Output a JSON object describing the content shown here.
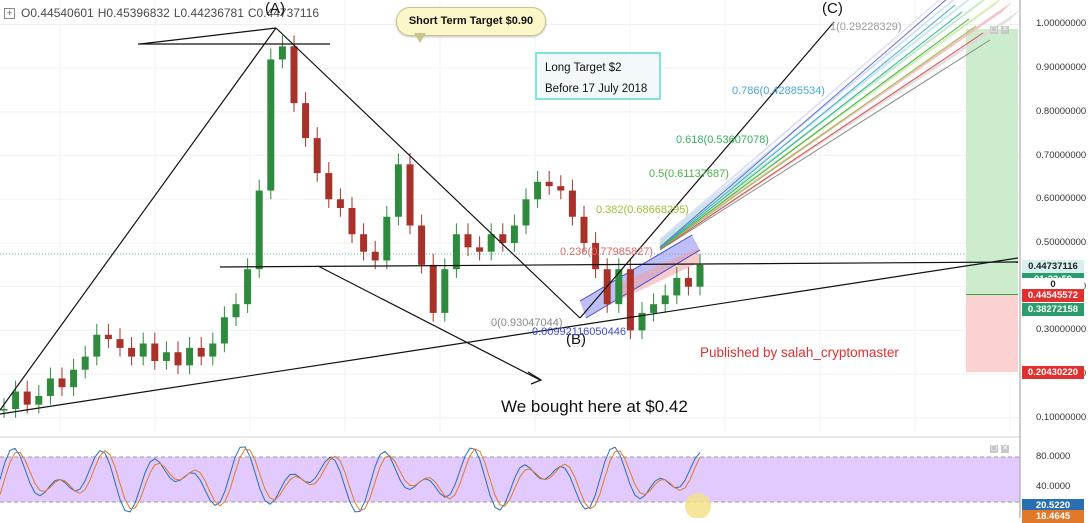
{
  "ohlc": {
    "open": "O0.44540601",
    "high": "H0.45396832",
    "low": "L0.44236781",
    "close": "C0.44737116"
  },
  "callout": {
    "text": "Short Term Target $0.90"
  },
  "target_box": {
    "line1": "Long Target $2",
    "line2": "Before 17 July 2018"
  },
  "labels": {
    "point_a": "(A)",
    "point_b": "(B)",
    "point_c": "(C)",
    "bought": "We bought here at $0.42",
    "published": "Published by salah_cryptomaster"
  },
  "fib_labels": [
    {
      "text": "1(0.29228329)",
      "color": "#9e9e9e"
    },
    {
      "text": "0.786(0.42885534)",
      "color": "#4aa8d8"
    },
    {
      "text": "0.618(0.53607078)",
      "color": "#35b35e"
    },
    {
      "text": "0.5(0.61137687)",
      "color": "#49b549"
    },
    {
      "text": "0.382(0.68668295)",
      "color": "#9bc23a"
    },
    {
      "text": "0.236(0.77985827)",
      "color": "#e06a6a"
    },
    {
      "text": "0(0.93047044)",
      "color": "#888888"
    },
    {
      "text": "0.00992116050446",
      "color": "#3f4bd6"
    }
  ],
  "y_axis": {
    "ticks": [
      "1.00000000",
      "0.90000000",
      "0.80000000",
      "0.70000000",
      "0.60000000",
      "0.50000000",
      "0.40000000",
      "0.30000000",
      "0.20000000",
      "0.10000000"
    ],
    "tick_values": [
      1.0,
      0.9,
      0.8,
      0.7,
      0.6,
      0.5,
      0.4,
      0.3,
      0.2,
      0.1
    ],
    "markers": [
      {
        "text": "0.44737116",
        "value": 0.44737116,
        "bg": "#d6f0f0",
        "fg": "#222222"
      },
      {
        "text": "01:23:59",
        "value": 0.418,
        "bg": "#2b9c6b",
        "fg": "#ffffff"
      },
      {
        "text": "0",
        "value": 0.405,
        "bg": "#ffffff",
        "fg": "#222222"
      },
      {
        "text": "0.44545572",
        "value": 0.382,
        "bg": "#e03030",
        "fg": "#ffffff"
      },
      {
        "text": "0.38272158",
        "value": 0.349,
        "bg": "#2b9c6b",
        "fg": "#ffffff"
      },
      {
        "text": "0.20430220",
        "value": 0.2043,
        "bg": "#e03030",
        "fg": "#ffffff"
      }
    ]
  },
  "oscillator": {
    "ticks": [
      "80.0000",
      "40.0000"
    ],
    "tick_values": [
      80,
      40
    ],
    "markers": [
      {
        "text": "20.5220",
        "value": 20.522,
        "bg": "#2a6fb0",
        "fg": "#ffffff"
      },
      {
        "text": "18.4645",
        "value": 18.4645,
        "bg": "#e07a2a",
        "fg": "#ffffff"
      }
    ]
  },
  "colors": {
    "up": "#2e8b3d",
    "down": "#a8312a",
    "trend": "#111111",
    "oscillator_band": "#e2caff",
    "stoch_k": "#2a6fb0",
    "stoch_d": "#e07a2a",
    "published": "#e03030"
  },
  "chart_data": {
    "type": "candlestick",
    "title": "",
    "y_axis": {
      "ylim": [
        0.04,
        1.04
      ]
    },
    "series": [
      {
        "name": "price",
        "values": [
          0.12,
          0.16,
          0.13,
          0.15,
          0.19,
          0.17,
          0.21,
          0.24,
          0.29,
          0.28,
          0.26,
          0.24,
          0.27,
          0.23,
          0.25,
          0.22,
          0.26,
          0.24,
          0.27,
          0.33,
          0.36,
          0.44,
          0.62,
          0.92,
          0.95,
          0.82,
          0.74,
          0.66,
          0.6,
          0.58,
          0.52,
          0.48,
          0.46,
          0.56,
          0.68,
          0.54,
          0.45,
          0.34,
          0.44,
          0.52,
          0.49,
          0.48,
          0.52,
          0.5,
          0.54,
          0.6,
          0.64,
          0.63,
          0.62,
          0.56,
          0.5,
          0.44,
          0.36,
          0.44,
          0.3,
          0.34,
          0.36,
          0.38,
          0.42,
          0.4,
          0.45
        ]
      }
    ]
  }
}
